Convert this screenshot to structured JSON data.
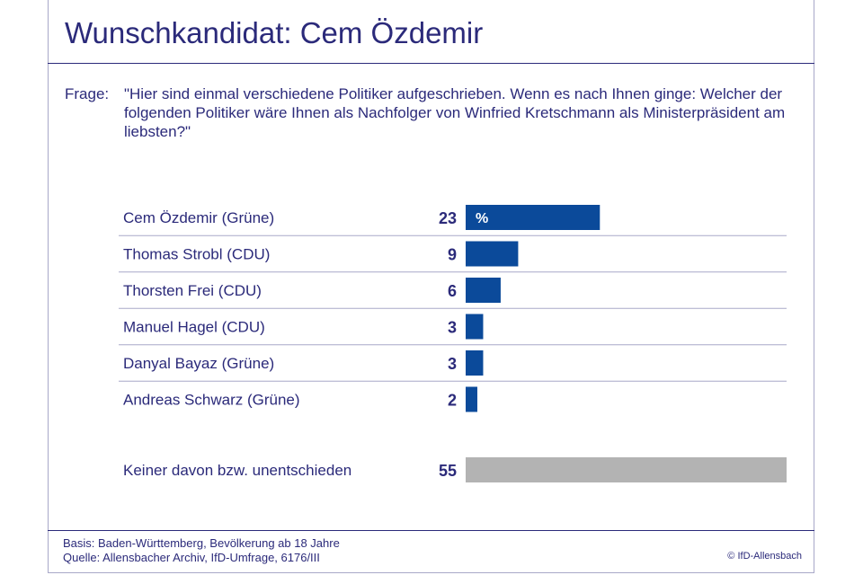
{
  "title": "Wunschkandidat: Cem Özdemir",
  "question_prefix": "Frage:",
  "question_text": "\"Hier sind einmal verschiedene Politiker aufgeschrieben. Wenn es nach Ihnen ginge: Welcher der folgenden Politiker wäre Ihnen als Nachfolger von Winfried Kretschmann als Ministerpräsident am liebsten?\"",
  "footer": {
    "basis": "Basis: Baden-Württemberg, Bevölkerung ab 18 Jahre",
    "source": "Quelle: Allensbacher Archiv, IfD-Umfrage, 6176/III",
    "copyright": "© IfD-Allensbach"
  },
  "colors": {
    "text": "#2b2a7a",
    "bar": "#0b4a9a",
    "bar_other": "#b3b3b3",
    "gridline": "#a8a8c8"
  },
  "chart_data": {
    "type": "bar",
    "orientation": "horizontal",
    "unit_label": "%",
    "categories": [
      "Cem Özdemir (Grüne)",
      "Thomas Strobl (CDU)",
      "Thorsten Frei (CDU)",
      "Manuel Hagel (CDU)",
      "Danyal Bayaz (Grüne)",
      "Andreas Schwarz (Grüne)"
    ],
    "values": [
      23,
      9,
      6,
      3,
      3,
      2
    ],
    "other": {
      "label": "Keiner davon bzw. unentschieden",
      "value": 55
    },
    "xlim": [
      0,
      55
    ]
  }
}
